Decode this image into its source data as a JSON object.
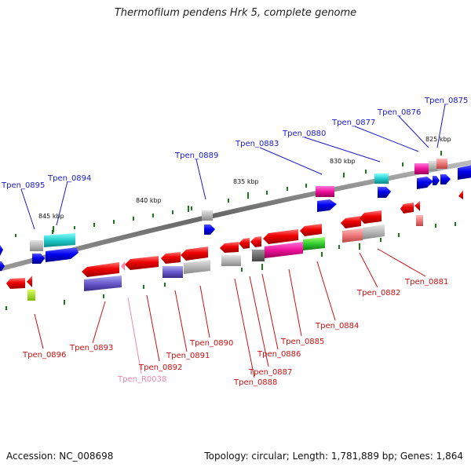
{
  "title": "Thermofilum pendens Hrk 5, complete genome",
  "footer": {
    "accession": "Accession: NC_008698",
    "summary": "Topology: circular; Length: 1,781,889 bp; Genes: 1,864"
  },
  "kbp_ticks": [
    "845 kbp",
    "840 kbp",
    "835 kbp",
    "830 kbp",
    "825 kbp"
  ],
  "upper_labels": [
    "Tpen_0895",
    "Tpen_0894",
    "Tpen_0889",
    "Tpen_0883",
    "Tpen_0880",
    "Tpen_0877",
    "Tpen_0876",
    "Tpen_0875"
  ],
  "lower_labels": [
    "Tpen_0896",
    "Tpen_0893",
    "Tpen_R0038",
    "Tpen_0892",
    "Tpen_0891",
    "Tpen_0890",
    "Tpen_0888",
    "Tpen_0887",
    "Tpen_0886",
    "Tpen_0885",
    "Tpen_0884",
    "Tpen_0882",
    "Tpen_0881"
  ],
  "colors": {
    "forward_label": "#1a1acc",
    "reverse_label": "#cc1111",
    "rna_label": "#ee88aa",
    "backbone": "#777777",
    "tick": "#1a7a1a"
  }
}
